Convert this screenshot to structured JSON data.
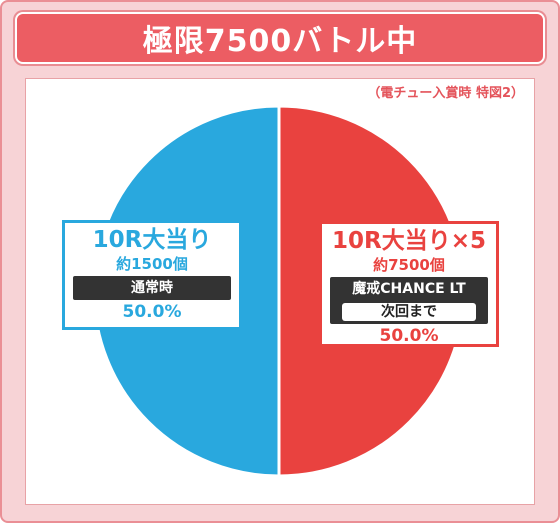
{
  "title": "極限7500バトル中",
  "note": "（電チュー入賞時 特図2）",
  "colors": {
    "left": "#29a8de",
    "right": "#e9423f",
    "accent": "#ec5d63"
  },
  "chart_data": {
    "type": "pie",
    "slices": [
      {
        "label": "10R大当り",
        "sub": "約1500個",
        "tag": "通常時",
        "value": 50.0,
        "value_label": "50.0%",
        "color": "#29a8de"
      },
      {
        "label": "10R大当り×5",
        "sub": "約7500個",
        "tag": "魔戒CHANCE LT",
        "tag2": "次回まで",
        "value": 50.0,
        "value_label": "50.0%",
        "color": "#e9423f"
      }
    ]
  }
}
